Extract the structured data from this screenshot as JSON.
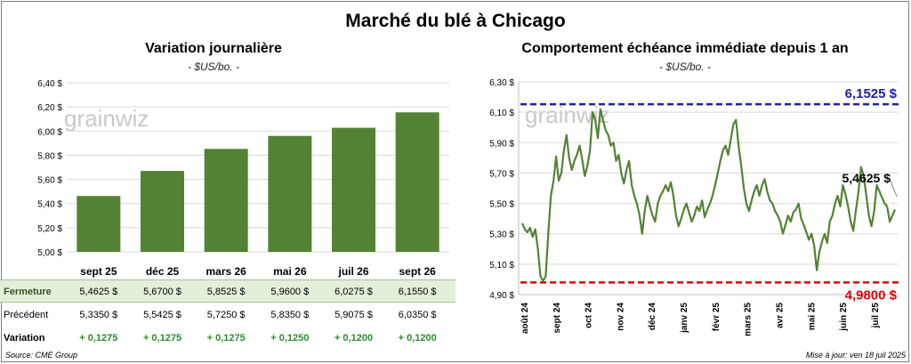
{
  "title": "Marché du blé à Chicago",
  "source": "Source: CME Group",
  "updated": "Mise à jour: ven 18 juil 2025",
  "watermark": "grainwiz",
  "colors": {
    "bar": "#548235",
    "line": "#548235",
    "max": "#1f1fa8",
    "min": "#e00000",
    "fermeture_bg": "#e2efd9"
  },
  "chart_data": [
    {
      "type": "bar",
      "title": "Variation journalière",
      "subtitle": "- $US/bo. -",
      "categories": [
        "sept 25",
        "déc 25",
        "mars 26",
        "mai 26",
        "juil 26",
        "sept 26"
      ],
      "values": [
        5.4625,
        5.67,
        5.8525,
        5.96,
        6.0275,
        6.155
      ],
      "ylim": [
        5.0,
        6.4
      ],
      "yticks": [
        "5,00 $",
        "5,20 $",
        "5,40 $",
        "5,60 $",
        "5,80 $",
        "6,00 $",
        "6,20 $",
        "6,40 $"
      ],
      "grid": true,
      "table": {
        "rows": [
          {
            "label": "Fermeture",
            "values": [
              "5,4625  $",
              "5,6700  $",
              "5,8525  $",
              "5,9600  $",
              "6,0275  $",
              "6,1550  $"
            ]
          },
          {
            "label": "Précédent",
            "values": [
              "5,3350 $",
              "5,5425 $",
              "5,7250 $",
              "5,8350 $",
              "5,9075 $",
              "6,0350 $"
            ]
          },
          {
            "label": "Variation",
            "values": [
              "+ 0,1275",
              "+ 0,1275",
              "+ 0,1275",
              "+ 0,1250",
              "+ 0,1200",
              "+ 0,1200"
            ]
          }
        ]
      }
    },
    {
      "type": "line",
      "title": "Comportement  échéance immédiate depuis 1 an",
      "subtitle": "- $US/bo. -",
      "ylim": [
        4.9,
        6.3
      ],
      "yticks": [
        "4,90 $",
        "5,10 $",
        "5,30 $",
        "5,50 $",
        "5,70 $",
        "5,90 $",
        "6,10 $",
        "6,30 $"
      ],
      "xticks": [
        "août 24",
        "sept 24",
        "oct 24",
        "nov 24",
        "déc 24",
        "janv 25",
        "févr 25",
        "mars 25",
        "avr 25",
        "mai 25",
        "juin 25",
        "juil 25"
      ],
      "max_value": 6.1525,
      "max_label": "6,1525 $",
      "min_value": 4.98,
      "min_label": "4,9800 $",
      "last_label": "5,4625 $",
      "series": [
        {
          "values": [
            5.37,
            5.33,
            5.31,
            5.34,
            5.28,
            5.33,
            5.2,
            5.02,
            4.99,
            5.02,
            5.3,
            5.55,
            5.65,
            5.81,
            5.65,
            5.7,
            5.85,
            5.95,
            5.8,
            5.72,
            5.78,
            5.82,
            5.88,
            5.79,
            5.68,
            5.75,
            5.85,
            6.1,
            6.05,
            5.93,
            6.12,
            6.05,
            5.98,
            5.95,
            5.88,
            5.9,
            5.78,
            5.82,
            5.7,
            5.63,
            5.72,
            5.78,
            5.62,
            5.55,
            5.5,
            5.42,
            5.3,
            5.45,
            5.55,
            5.48,
            5.42,
            5.38,
            5.5,
            5.55,
            5.58,
            5.62,
            5.58,
            5.64,
            5.55,
            5.42,
            5.35,
            5.4,
            5.46,
            5.5,
            5.44,
            5.38,
            5.42,
            5.48,
            5.45,
            5.52,
            5.41,
            5.46,
            5.5,
            5.55,
            5.62,
            5.7,
            5.78,
            5.85,
            5.88,
            5.82,
            5.92,
            6.02,
            6.05,
            5.88,
            5.75,
            5.6,
            5.5,
            5.45,
            5.52,
            5.58,
            5.62,
            5.55,
            5.62,
            5.66,
            5.58,
            5.52,
            5.5,
            5.45,
            5.42,
            5.38,
            5.3,
            5.36,
            5.42,
            5.38,
            5.44,
            5.46,
            5.5,
            5.4,
            5.36,
            5.31,
            5.26,
            5.3,
            5.22,
            5.06,
            5.18,
            5.25,
            5.3,
            5.24,
            5.38,
            5.42,
            5.5,
            5.55,
            5.48,
            5.62,
            5.56,
            5.48,
            5.38,
            5.32,
            5.45,
            5.58,
            5.74,
            5.68,
            5.55,
            5.42,
            5.35,
            5.45,
            5.62,
            5.58,
            5.54,
            5.5,
            5.48,
            5.38,
            5.42,
            5.46
          ]
        }
      ]
    }
  ]
}
